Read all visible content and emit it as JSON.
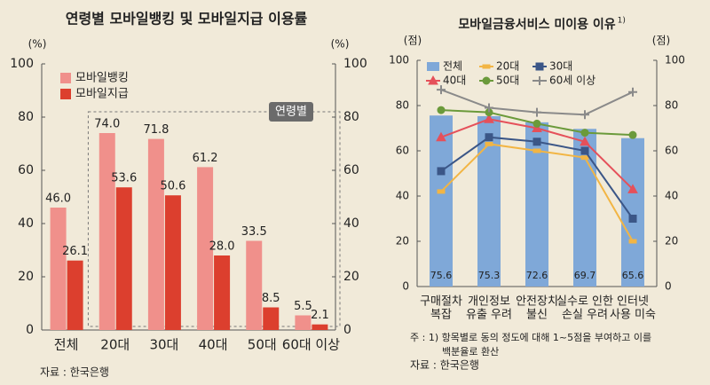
{
  "chart_data": [
    {
      "type": "bar",
      "title": "연령별 모바일뱅킹 및 모바일지급 이용률",
      "y_label": "(%)",
      "y2_label": "(%)",
      "categories": [
        "전체",
        "20대",
        "30대",
        "40대",
        "50대",
        "60대 이상"
      ],
      "series": [
        {
          "name": "모바일뱅킹",
          "color": "#f0908b",
          "values": [
            46.0,
            74.0,
            71.8,
            61.2,
            33.5,
            5.5
          ],
          "value_labels": [
            "46.0",
            "74.0",
            "71.8",
            "61.2",
            "33.5",
            "5.5"
          ]
        },
        {
          "name": "모바일지급",
          "color": "#dc3f2e",
          "values": [
            26.1,
            53.6,
            50.6,
            28.0,
            8.5,
            2.1
          ],
          "value_labels": [
            "26.1",
            "53.6",
            "50.6",
            "28.0",
            "8.5",
            "2.1"
          ]
        }
      ],
      "ylim": [
        0,
        100
      ],
      "yticks": [
        0,
        20,
        40,
        60,
        80,
        100
      ],
      "y2lim": [
        0,
        100
      ],
      "y2ticks": [
        0,
        20,
        40,
        60,
        80,
        100
      ],
      "annotation": "연령별",
      "source": "자료 : 한국은행",
      "legend": "upper left"
    },
    {
      "type": "combo",
      "title": "모바일금융서비스 미이용 이유",
      "title_note": "1)",
      "y_label": "(점)",
      "y2_label": "(점)",
      "categories": [
        [
          "구매절차",
          "복잡"
        ],
        [
          "개인정보",
          "유출 우려"
        ],
        [
          "안전장치",
          "불신"
        ],
        [
          "실수로 인한",
          "손실 우려"
        ],
        [
          "인터넷",
          "사용 미숙"
        ]
      ],
      "series": [
        {
          "name": "전체",
          "type": "bar",
          "color": "#7fa8d8",
          "values": [
            75.6,
            75.3,
            72.6,
            69.7,
            65.6
          ]
        },
        {
          "name": "20대",
          "type": "line",
          "marker": "dash",
          "color": "#f2b544",
          "values": [
            42,
            63,
            60,
            57,
            20
          ]
        },
        {
          "name": "30대",
          "type": "line",
          "marker": "square",
          "color": "#3b5687",
          "values": [
            51,
            66,
            64,
            60,
            30
          ]
        },
        {
          "name": "40대",
          "type": "line",
          "marker": "triangle",
          "color": "#e5505a",
          "values": [
            66,
            74,
            70,
            64,
            43
          ]
        },
        {
          "name": "50대",
          "type": "line",
          "marker": "circle",
          "color": "#6b9a3b",
          "values": [
            78,
            77,
            72,
            68,
            67
          ]
        },
        {
          "name": "60세 이상",
          "type": "line",
          "marker": "plus",
          "color": "#8a8a8a",
          "values": [
            87,
            79,
            77,
            76,
            86
          ]
        }
      ],
      "ylim": [
        0,
        100
      ],
      "yticks": [
        0,
        20,
        40,
        60,
        80,
        100
      ],
      "y2lim": [
        0,
        100
      ],
      "y2ticks": [
        0,
        20,
        40,
        60,
        80,
        100
      ],
      "note": [
        "주 : 1) 항목별로 동의 정도에 대해 1~5점을 부여하고 이를",
        "백분율로 환산"
      ],
      "source": "자료 : 한국은행",
      "legend": "upper center"
    }
  ]
}
